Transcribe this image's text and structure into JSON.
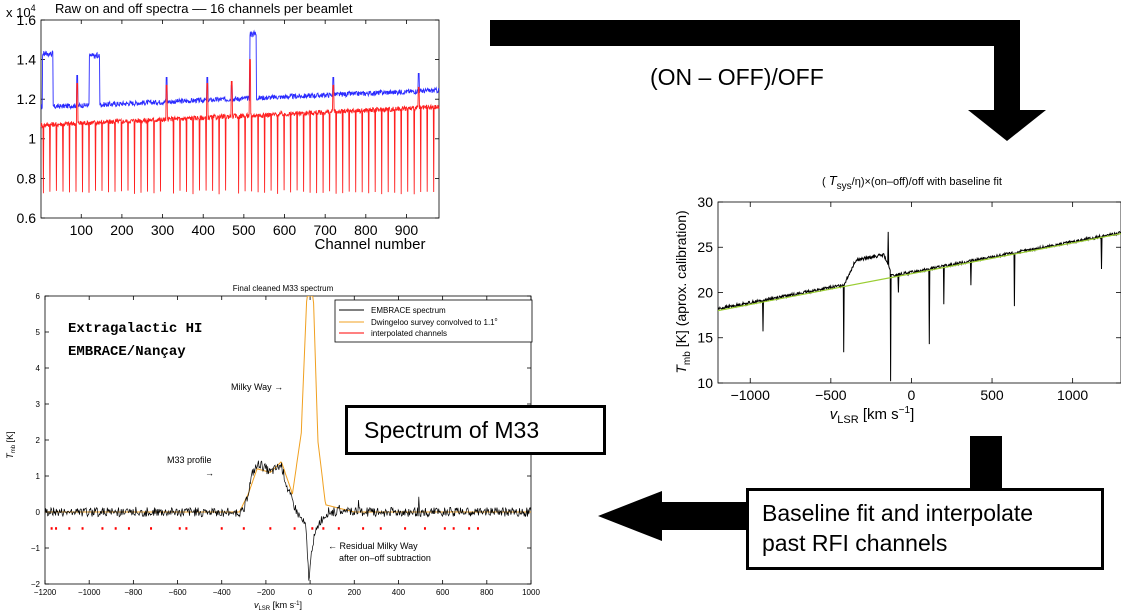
{
  "chart_data": [
    {
      "type": "line",
      "title": "Raw on and off spectra –– 16 channels per beamlet",
      "y_multiplier_label": "x 10",
      "y_multiplier_exponent": "4",
      "xlabel": "Channel number",
      "ylabel": "",
      "xlim": [
        1,
        980
      ],
      "ylim": [
        0.6,
        1.6
      ],
      "x_ticks": [
        100,
        200,
        300,
        400,
        500,
        600,
        700,
        800,
        900
      ],
      "y_ticks": [
        0.6,
        0.8,
        1,
        1.2,
        1.4,
        1.6
      ],
      "grid": false,
      "series": [
        {
          "color": "#2b2bff",
          "baseline_start": 1.16,
          "baseline_end": 1.245,
          "period": 16,
          "spikes": [
            {
              "x": 5,
              "x2": 30,
              "y": 1.43
            },
            {
              "x": 90,
              "y": 1.32
            },
            {
              "x": 120,
              "x2": 145,
              "y": 1.42
            },
            {
              "x": 310,
              "y": 1.31
            },
            {
              "x": 410,
              "y": 1.31
            },
            {
              "x": 470,
              "y": 1.27
            },
            {
              "x": 515,
              "x2": 530,
              "y": 1.53
            },
            {
              "x": 720,
              "y": 1.31
            },
            {
              "x": 930,
              "y": 1.33
            }
          ]
        },
        {
          "color": "#ff2020",
          "baseline_start": 1.07,
          "baseline_end": 1.16,
          "period": 16,
          "dip": 0.72,
          "spikes": [
            {
              "x": 90,
              "y": 1.28
            },
            {
              "x": 310,
              "y": 1.27
            },
            {
              "x": 410,
              "y": 1.28
            },
            {
              "x": 470,
              "y": 1.29
            },
            {
              "x": 515,
              "y": 1.4
            },
            {
              "x": 720,
              "y": 1.27
            },
            {
              "x": 930,
              "y": 1.26
            }
          ]
        }
      ]
    },
    {
      "type": "line",
      "title": "Final cleaned M33 spectrum",
      "xlabel": "v",
      "xlabel_sub": "LSR",
      "xlabel_unit": "[km s",
      "xlabel_unit_sup": "-1",
      "xlabel_unit_end": "]",
      "ylabel": "T",
      "ylabel_sub": "mb",
      "ylabel_unit": "[K]",
      "xlim": [
        -1200,
        1000
      ],
      "ylim": [
        -2,
        6
      ],
      "x_ticks": [
        -1200,
        -1000,
        -800,
        -600,
        -400,
        -200,
        0,
        200,
        400,
        600,
        800,
        1000
      ],
      "y_ticks": [
        -2,
        -1,
        0,
        1,
        2,
        3,
        4,
        5,
        6
      ],
      "grid": false,
      "legend_position": "top-right",
      "legend": [
        {
          "name": "EMBRACE spectrum",
          "color": "#000000"
        },
        {
          "name": "Dwingeloo survey convolved to 1.1",
          "name_sup": "o",
          "color": "#f0a020"
        },
        {
          "name": "interpolated channels",
          "color": "#ff0000"
        }
      ],
      "series": [
        {
          "name": "EMBRACE spectrum",
          "color": "#000000",
          "noise": 0.13,
          "profile": [
            {
              "x": -300,
              "y": 0
            },
            {
              "x": -260,
              "y": 1.1
            },
            {
              "x": -230,
              "y": 1.35
            },
            {
              "x": -180,
              "y": 1.1
            },
            {
              "x": -130,
              "y": 1.3
            },
            {
              "x": -100,
              "y": 0.6
            },
            {
              "x": -60,
              "y": 0
            },
            {
              "x": -20,
              "y": -0.4
            },
            {
              "x": -5,
              "y": -1.9
            },
            {
              "x": 10,
              "y": -0.9
            },
            {
              "x": 40,
              "y": -0.3
            },
            {
              "x": 80,
              "y": 0
            }
          ]
        },
        {
          "name": "Dwingeloo survey convolved to 1.1°",
          "color": "#f0a020",
          "profile": [
            {
              "x": -1200,
              "y": 0
            },
            {
              "x": -320,
              "y": 0
            },
            {
              "x": -280,
              "y": 0.5
            },
            {
              "x": -240,
              "y": 1.2
            },
            {
              "x": -180,
              "y": 1.1
            },
            {
              "x": -130,
              "y": 1.4
            },
            {
              "x": -80,
              "y": 0.5
            },
            {
              "x": -40,
              "y": 2.2
            },
            {
              "x": -15,
              "y": 6
            },
            {
              "x": 15,
              "y": 6
            },
            {
              "x": 35,
              "y": 2
            },
            {
              "x": 70,
              "y": 0.2
            },
            {
              "x": 200,
              "y": 0
            },
            {
              "x": 1000,
              "y": 0
            }
          ]
        },
        {
          "name": "interpolated channels",
          "color": "#ff0000",
          "y": -0.45,
          "x": [
            -1170,
            -1150,
            -1090,
            -1030,
            -940,
            -880,
            -820,
            -720,
            -590,
            -560,
            -400,
            -300,
            -180,
            -70,
            10,
            60,
            130,
            240,
            320,
            430,
            520,
            610,
            650,
            720,
            760
          ]
        }
      ],
      "annotations": [
        {
          "text": "Extragalactic HI",
          "style": "mono-bold"
        },
        {
          "text": "EMBRACE/Nançay",
          "style": "mono-bold"
        },
        {
          "text": "Milky Way →"
        },
        {
          "text": "M33 profile"
        },
        {
          "text": "→"
        },
        {
          "text": "← Residual Milky Way"
        },
        {
          "text": "after on–off subtraction"
        }
      ]
    },
    {
      "type": "line",
      "title_prefix": "( ",
      "title_T": "T",
      "title_sub": "sys",
      "title_rest": "/η)×(on–off)/off with baseline fit",
      "xlabel": "v",
      "xlabel_sub": "LSR",
      "xlabel_unit": "[km s",
      "xlabel_unit_sup": "−1",
      "xlabel_unit_end": "]",
      "ylabel": "T",
      "ylabel_sub": "mb",
      "ylabel_unit": "[K]  (aprox. calibration)",
      "xlim": [
        -1200,
        1300
      ],
      "ylim": [
        10,
        30
      ],
      "x_ticks": [
        -1000,
        -500,
        0,
        500,
        1000
      ],
      "y_ticks": [
        10,
        15,
        20,
        25,
        30
      ],
      "grid": false,
      "series": [
        {
          "name": "spectrum",
          "color": "#000000",
          "baseline_start": 18.2,
          "baseline_end": 26.6,
          "bump": {
            "from": -420,
            "to": -120,
            "height": 2.5
          },
          "dips": [
            {
              "x": -920,
              "y": 15.7
            },
            {
              "x": -420,
              "y": 13.4
            },
            {
              "x": -130,
              "y": 10.2
            },
            {
              "x": -80,
              "y": 20.0
            },
            {
              "x": 110,
              "y": 14.3
            },
            {
              "x": 200,
              "y": 18.7
            },
            {
              "x": 370,
              "y": 20.8
            },
            {
              "x": 640,
              "y": 18.5
            },
            {
              "x": 1180,
              "y": 22.6
            }
          ],
          "peaks": [
            {
              "x": -145,
              "y": 26.7
            }
          ]
        },
        {
          "name": "baseline fit",
          "color": "#9acd32",
          "start": 18.0,
          "end": 26.5
        }
      ]
    }
  ],
  "labels": {
    "on_off": "(ON – OFF)/OFF",
    "spectrum_m33": "Spectrum of M33",
    "baseline_fit_line1": "Baseline fit and interpolate",
    "baseline_fit_line2": "past RFI channels"
  }
}
